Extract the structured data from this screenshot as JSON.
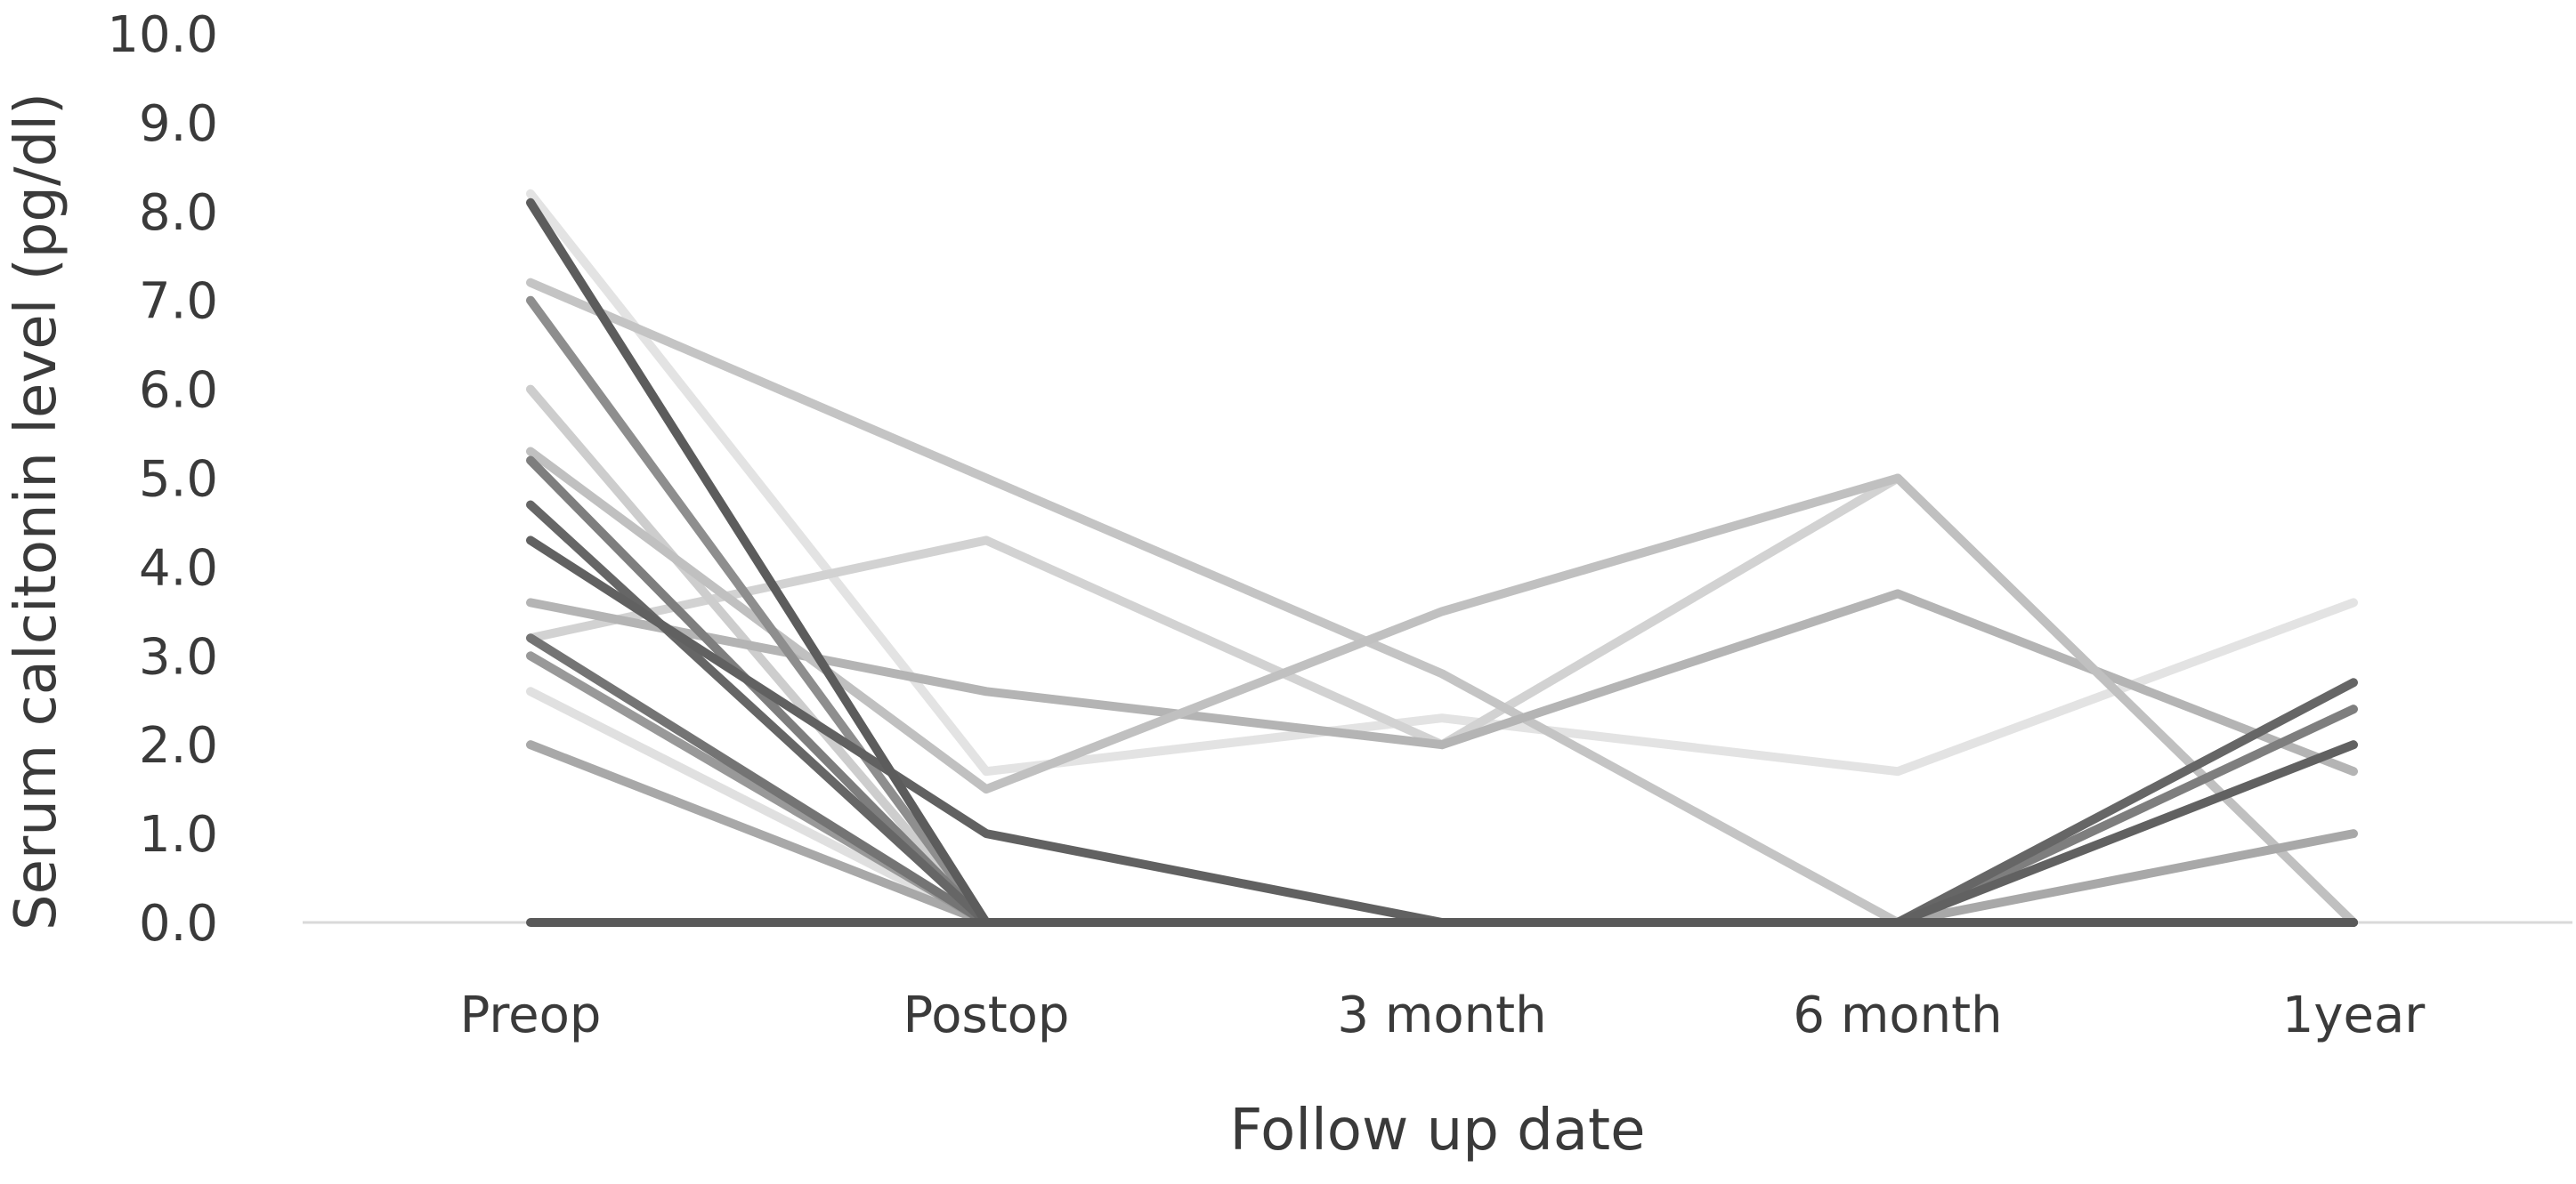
{
  "chart_data": {
    "type": "line",
    "title": "",
    "xlabel": "Follow up date",
    "ylabel": "Serum calcitonin level (pg/dl)",
    "categories": [
      "Preop",
      "Postop",
      "3 month",
      "6 month",
      "1year"
    ],
    "ylim": [
      0,
      10
    ],
    "yticks": [
      "0.0",
      "1.0",
      "2.0",
      "3.0",
      "4.0",
      "5.0",
      "6.0",
      "7.0",
      "8.0",
      "9.0",
      "10.0"
    ],
    "grid": false,
    "legend": "none",
    "series": [
      {
        "values": [
          8.2,
          1.7,
          2.3,
          1.7,
          3.6
        ],
        "color": "#e3e3e3"
      },
      {
        "values": [
          2.6,
          0.0,
          0.0,
          0.0,
          0.0
        ],
        "color": "#e0e0e0"
      },
      {
        "values": [
          3.2,
          4.3,
          2.0,
          5.0,
          0.0
        ],
        "color": "#d2d2d2"
      },
      {
        "values": [
          7.2,
          5.0,
          2.8,
          0.0,
          0.0
        ],
        "color": "#c4c4c4"
      },
      {
        "values": [
          6.0,
          0.0,
          0.0,
          0.0,
          0.0
        ],
        "color": "#cdcdcd"
      },
      {
        "values": [
          3.6,
          2.6,
          2.0,
          3.7,
          1.7
        ],
        "color": "#b4b4b4"
      },
      {
        "values": [
          5.3,
          1.5,
          3.5,
          5.0,
          0.0
        ],
        "color": "#c0c0c0"
      },
      {
        "values": [
          2.0,
          0.0,
          0.0,
          0.0,
          1.0
        ],
        "color": "#a8a8a8"
      },
      {
        "values": [
          7.0,
          0.0,
          0.0,
          0.0,
          0.0
        ],
        "color": "#8e8e8e"
      },
      {
        "values": [
          3.0,
          0.0,
          0.0,
          0.0,
          0.0
        ],
        "color": "#999999"
      },
      {
        "values": [
          5.2,
          0.0,
          0.0,
          0.0,
          2.4
        ],
        "color": "#7e7e7e"
      },
      {
        "values": [
          3.2,
          0.0,
          0.0,
          0.0,
          0.0
        ],
        "color": "#747474"
      },
      {
        "values": [
          4.7,
          0.0,
          0.0,
          0.0,
          2.7
        ],
        "color": "#666666"
      },
      {
        "values": [
          4.3,
          1.0,
          0.0,
          0.0,
          2.0
        ],
        "color": "#616161"
      },
      {
        "values": [
          8.1,
          0.0,
          0.0,
          0.0,
          0.0
        ],
        "color": "#5c5c5c"
      },
      {
        "values": [
          0.0,
          0.0,
          0.0,
          0.0,
          0.0
        ],
        "color": "#595959"
      }
    ]
  }
}
